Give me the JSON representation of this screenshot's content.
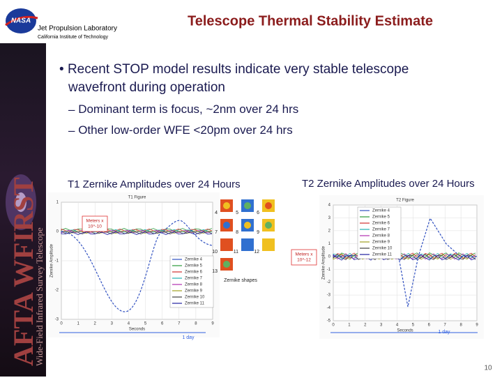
{
  "header": {
    "lab": "Jet Propulsion Laboratory",
    "institute": "California Institute of Technology",
    "title": "Telescope Thermal Stability Estimate"
  },
  "sidebar": {
    "title": "AFTA WFIRST",
    "subtitle": "Wide-Field Infrared Survey Telescope"
  },
  "bullets": [
    {
      "text": "Recent STOP model results indicate very stable telescope",
      "text2": "wavefront during operation",
      "sub": [
        "Dominant term is focus, ~2nm over 24 hrs",
        "Other low-order WFE <20pm over 24 hrs"
      ]
    }
  ],
  "figures": [
    {
      "heading": "T1 Zernike Amplitudes over 24 Hours",
      "plot_title": "T1 Figure",
      "ylabel": "Zernike Amplitude",
      "xlabel": "Seconds",
      "annotation": [
        "Meters x",
        "10^-10"
      ],
      "span_label": "1 day",
      "yticks": [
        "1",
        "0",
        "-1",
        "-2",
        "-3"
      ],
      "xticks": [
        "0",
        "1",
        "2",
        "3",
        "4",
        "5",
        "6",
        "7",
        "8",
        "9"
      ],
      "legend": [
        {
          "name": "Zernike 4",
          "color": "#3050c0"
        },
        {
          "name": "Zernike 5",
          "color": "#2a9a3a"
        },
        {
          "name": "Zernike 6",
          "color": "#d03030"
        },
        {
          "name": "Zernike 7",
          "color": "#20b0b0"
        },
        {
          "name": "Zernike 8",
          "color": "#b030b0"
        },
        {
          "name": "Zernike 9",
          "color": "#a0a020"
        },
        {
          "name": "Zernike 10",
          "color": "#404040"
        },
        {
          "name": "Zernike 11",
          "color": "#2020a0"
        }
      ],
      "shapes_label": "Zernike shapes",
      "shape_numbers": [
        "4",
        "5",
        "6",
        "7",
        "8",
        "9",
        "10",
        "11",
        "12",
        "13"
      ]
    },
    {
      "heading": "T2 Zernike Amplitudes over 24 Hours",
      "plot_title": "T2 Figure",
      "ylabel": "Zernike Amplitude",
      "xlabel": "Seconds",
      "annotation": [
        "Meters x",
        "10^-12"
      ],
      "span_label": "1 day",
      "yticks": [
        "4",
        "3",
        "2",
        "1",
        "0",
        "-1",
        "-2",
        "-3",
        "-4",
        "-5"
      ],
      "xticks": [
        "0",
        "1",
        "2",
        "3",
        "4",
        "5",
        "6",
        "7",
        "8",
        "9"
      ],
      "legend": [
        {
          "name": "Zernike 4",
          "color": "#3050c0"
        },
        {
          "name": "Zernike 5",
          "color": "#2a9a3a"
        },
        {
          "name": "Zernike 6",
          "color": "#d03030"
        },
        {
          "name": "Zernike 7",
          "color": "#20b0b0"
        },
        {
          "name": "Zernike 8",
          "color": "#b030b0"
        },
        {
          "name": "Zernike 9",
          "color": "#a0a020"
        },
        {
          "name": "Zernike 10",
          "color": "#404040"
        },
        {
          "name": "Zernike 11",
          "color": "#2020a0"
        }
      ]
    }
  ],
  "page_number": "10"
}
